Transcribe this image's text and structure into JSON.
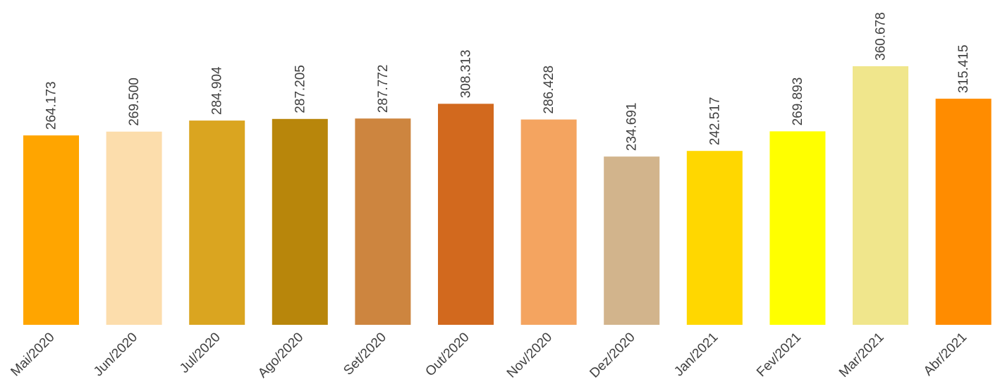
{
  "chart_data": {
    "type": "bar",
    "categories": [
      "Mai/2020",
      "Jun/2020",
      "Jul/2020",
      "Ago/2020",
      "Set/2020",
      "Out/2020",
      "Nov/2020",
      "Dez/2020",
      "Jan/2021",
      "Fev/2021",
      "Mar/2021",
      "Abr/2021"
    ],
    "values": [
      264173,
      269500,
      284904,
      287205,
      287772,
      308313,
      286428,
      234691,
      242517,
      269893,
      360678,
      315415
    ],
    "value_labels": [
      "264.173",
      "269.500",
      "284.904",
      "287.205",
      "287.772",
      "308.313",
      "286.428",
      "234.691",
      "242.517",
      "269.893",
      "360.678",
      "315.415"
    ],
    "colors": [
      "#FFA500",
      "#FCDDAC",
      "#DAA520",
      "#B8860B",
      "#CD853F",
      "#D2691E",
      "#F4A460",
      "#D2B48C",
      "#FFD700",
      "#FFFF00",
      "#F0E68C",
      "#FF8C00"
    ],
    "title": "",
    "xlabel": "",
    "ylabel": "",
    "ylim": [
      0,
      360678
    ],
    "grid": false,
    "legend": "none"
  }
}
